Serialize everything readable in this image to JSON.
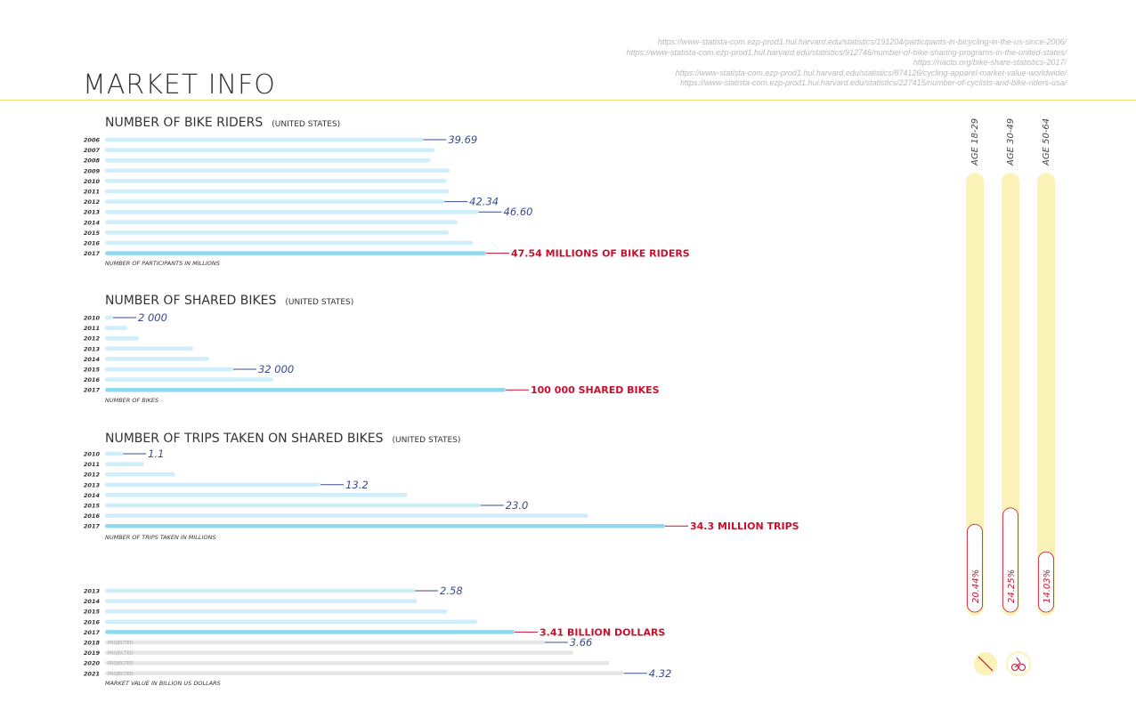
{
  "header": {
    "title": "MARKET INFO",
    "sources": [
      "https://www-statista-com.ezp-prod1.hul.harvard.edu/statistics/191204/participants-in-bicycling-in-the-us-since-2006/",
      "https://www-statista-com.ezp-prod1.hul.harvard.edu/statistics/912746/number-of-bike-sharing-programs-in-the-united-states/",
      "https://nacto.org/bike-share-statistics-2017/",
      "https://www-statista-com.ezp-prod1.hul.harvard.edu/statistics/874126/cycling-apparel-market-value-worldwide/",
      "https://www-statista-com.ezp-prod1.hul.harvard.edu/statistics/227415/number-of-cyclists-and-bike-riders-usa/"
    ]
  },
  "colors": {
    "bar": "#cdeefa",
    "bar_highlight": "#8fd8f2",
    "bar_projected": "#e6e6e6",
    "label": "#3b4a8c",
    "highlight_label": "#c8102e",
    "accent_line": "#f2dc6b",
    "age_track": "#fbf2b8"
  },
  "sections": {
    "riders": {
      "title": "NUMBER OF BIKE RIDERS",
      "subtitle": "(UNITED STATES)",
      "footnote": "NUMBER OF PARTICIPANTS IN MILLIONS"
    },
    "shared": {
      "title": "NUMBER OF SHARED BIKES",
      "subtitle": "(UNITED STATES)",
      "footnote": "NUMBER OF BIKES"
    },
    "trips": {
      "title": "NUMBER OF TRIPS TAKEN ON SHARED BIKES",
      "subtitle": "(UNITED STATES)",
      "footnote": "NUMBER OF TRIPS TAKEN IN MILLIONS"
    },
    "market": {
      "footnote": "MARKET VALUE IN BILLION US DOLLARS"
    }
  },
  "chart_data": [
    {
      "type": "bar",
      "orientation": "horizontal",
      "title": "NUMBER OF BIKE RIDERS",
      "categories": [
        "2006",
        "2007",
        "2008",
        "2009",
        "2010",
        "2011",
        "2012",
        "2013",
        "2014",
        "2015",
        "2016",
        "2017"
      ],
      "values": [
        39.69,
        41.1,
        40.6,
        43.0,
        42.6,
        42.9,
        42.34,
        46.6,
        44.0,
        42.9,
        45.9,
        47.54
      ],
      "labels": [
        {
          "index": 0,
          "text": "39.69"
        },
        {
          "index": 6,
          "text": "42.34"
        },
        {
          "index": 7,
          "text": "46.60"
        },
        {
          "index": 11,
          "text": "47.54 MILLIONS OF BIKE RIDERS",
          "highlight": true
        }
      ],
      "xlim": [
        0,
        55
      ]
    },
    {
      "type": "bar",
      "orientation": "horizontal",
      "title": "NUMBER OF SHARED BIKES",
      "categories": [
        "2010",
        "2011",
        "2012",
        "2013",
        "2014",
        "2015",
        "2016",
        "2017"
      ],
      "values": [
        2000,
        5500,
        8500,
        22000,
        26000,
        32000,
        42000,
        100000
      ],
      "labels": [
        {
          "index": 0,
          "text": "2 000"
        },
        {
          "index": 5,
          "text": "32 000"
        },
        {
          "index": 7,
          "text": "100 000 SHARED BIKES",
          "highlight": true
        }
      ],
      "xlim": [
        0,
        120000
      ]
    },
    {
      "type": "bar",
      "orientation": "horizontal",
      "title": "NUMBER OF TRIPS TAKEN ON SHARED BIKES",
      "categories": [
        "2010",
        "2011",
        "2012",
        "2013",
        "2014",
        "2015",
        "2016",
        "2017"
      ],
      "values": [
        1.1,
        2.4,
        4.3,
        13.2,
        18.5,
        23.0,
        29.6,
        34.3
      ],
      "labels": [
        {
          "index": 0,
          "text": "1.1"
        },
        {
          "index": 3,
          "text": "13.2"
        },
        {
          "index": 5,
          "text": "23.0"
        },
        {
          "index": 7,
          "text": "34.3 MILLION TRIPS",
          "highlight": true
        }
      ],
      "xlim": [
        0,
        40
      ]
    },
    {
      "type": "bar",
      "orientation": "horizontal",
      "categories": [
        "2013",
        "2014",
        "2015",
        "2016",
        "2017",
        "2018",
        "2019",
        "2020",
        "2021"
      ],
      "values": [
        2.58,
        2.6,
        2.85,
        3.1,
        3.41,
        3.66,
        3.9,
        4.2,
        4.32
      ],
      "projected": [
        false,
        false,
        false,
        false,
        false,
        true,
        true,
        true,
        true
      ],
      "projected_label": "PROJECTED",
      "labels": [
        {
          "index": 0,
          "text": "2.58"
        },
        {
          "index": 4,
          "text": "3.41 BILLION DOLLARS",
          "highlight": true
        },
        {
          "index": 5,
          "text": "3.66"
        },
        {
          "index": 8,
          "text": "4.32"
        }
      ],
      "xlim": [
        0,
        5.5
      ]
    },
    {
      "type": "bar",
      "orientation": "vertical",
      "categories": [
        "AGE 18-29",
        "AGE 30-49",
        "AGE 50-64"
      ],
      "values": [
        20.44,
        24.25,
        14.03
      ],
      "labels": [
        "20.44%",
        "24.25%",
        "14.03%"
      ],
      "ylim": [
        0,
        100
      ]
    }
  ],
  "icons": [
    "no-cycling-icon",
    "cyclist-icon"
  ]
}
